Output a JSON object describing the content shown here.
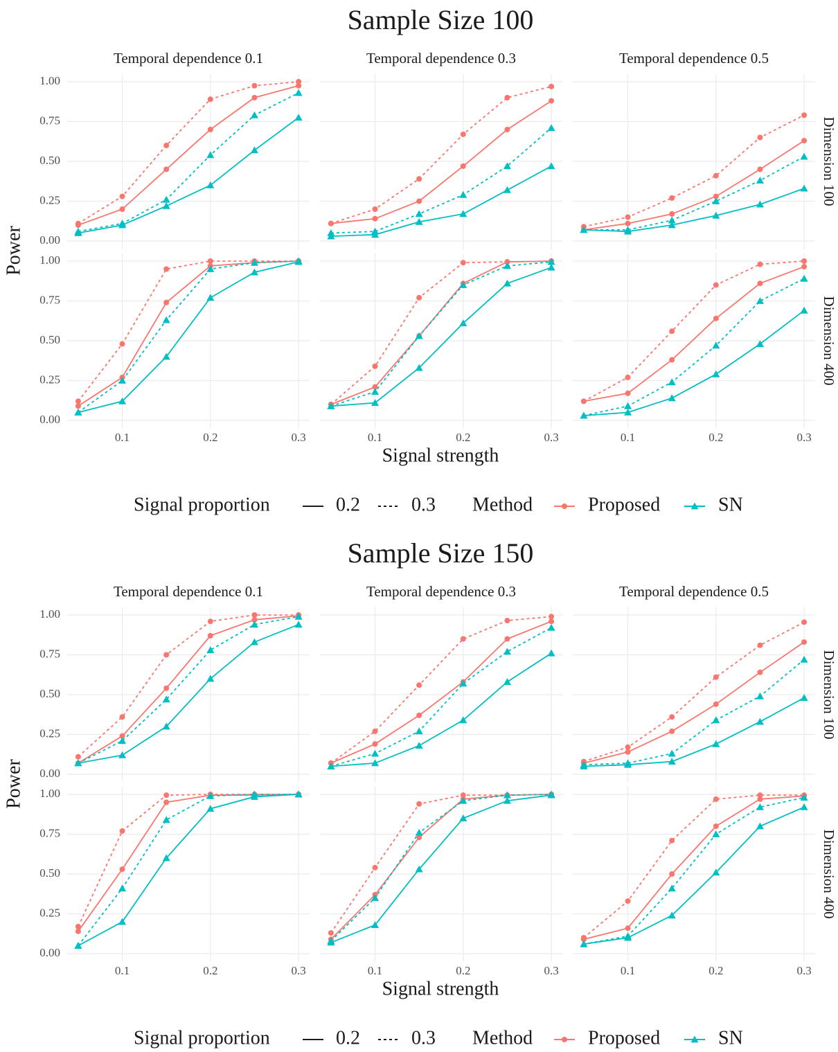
{
  "chart_data": [
    {
      "type": "line",
      "title": "Sample Size 100",
      "xlabel": "Signal strength",
      "ylabel": "Power",
      "col_labels": [
        "Temporal dependence 0.1",
        "Temporal dependence 0.3",
        "Temporal dependence 0.5"
      ],
      "row_labels": [
        "Dimension 100",
        "Dimension 400"
      ],
      "x": [
        0.05,
        0.1,
        0.15,
        0.2,
        0.25,
        0.3
      ],
      "xlim": [
        0.0375,
        0.3125
      ],
      "xticks": [
        0.1,
        0.2,
        0.3
      ],
      "ylim": [
        -0.05,
        1.05
      ],
      "yticks": [
        {
          "value": 0,
          "label": "0.00"
        },
        {
          "value": 0.25,
          "label": "0.25"
        },
        {
          "value": 0.5,
          "label": "0.50"
        },
        {
          "value": 0.75,
          "label": "0.75"
        },
        {
          "value": 1,
          "label": "1.00"
        }
      ],
      "grid": true,
      "legend": {
        "linetype_title": "Signal proportion",
        "linetypes": [
          {
            "name": "0.2",
            "dash": "solid"
          },
          {
            "name": "0.3",
            "dash": "dotted"
          }
        ],
        "color_title": "Method",
        "methods": [
          {
            "name": "Proposed",
            "color": "#F8766D",
            "marker": "circle"
          },
          {
            "name": "SN",
            "color": "#00BFC4",
            "marker": "triangle"
          }
        ]
      },
      "panels": [
        [
          [
            [
              [
                0.1,
                0.2,
                0.45,
                0.7,
                0.9,
                0.975
              ],
              [
                0.11,
                0.28,
                0.6,
                0.89,
                0.975,
                1.0
              ]
            ],
            [
              [
                0.05,
                0.1,
                0.22,
                0.35,
                0.57,
                0.775
              ],
              [
                0.06,
                0.11,
                0.26,
                0.54,
                0.79,
                0.93
              ]
            ]
          ],
          [
            [
              [
                0.11,
                0.14,
                0.25,
                0.47,
                0.7,
                0.88
              ],
              [
                0.11,
                0.2,
                0.39,
                0.67,
                0.9,
                0.97
              ]
            ],
            [
              [
                0.03,
                0.04,
                0.12,
                0.17,
                0.32,
                0.47
              ],
              [
                0.05,
                0.06,
                0.17,
                0.29,
                0.47,
                0.71
              ]
            ]
          ],
          [
            [
              [
                0.07,
                0.11,
                0.17,
                0.28,
                0.45,
                0.63
              ],
              [
                0.09,
                0.15,
                0.27,
                0.41,
                0.65,
                0.79
              ]
            ],
            [
              [
                0.07,
                0.06,
                0.1,
                0.16,
                0.23,
                0.33
              ],
              [
                0.07,
                0.07,
                0.13,
                0.25,
                0.38,
                0.53
              ]
            ]
          ]
        ],
        [
          [
            [
              [
                0.09,
                0.27,
                0.74,
                0.97,
                0.99,
                1.0
              ],
              [
                0.12,
                0.48,
                0.95,
                1.0,
                1.0,
                1.0
              ]
            ],
            [
              [
                0.05,
                0.12,
                0.4,
                0.77,
                0.93,
                0.995
              ],
              [
                0.05,
                0.25,
                0.63,
                0.95,
                0.99,
                1.0
              ]
            ]
          ],
          [
            [
              [
                0.1,
                0.21,
                0.53,
                0.86,
                0.995,
                1.0
              ],
              [
                0.1,
                0.34,
                0.77,
                0.99,
                0.995,
                1.0
              ]
            ],
            [
              [
                0.09,
                0.11,
                0.33,
                0.61,
                0.86,
                0.96
              ],
              [
                0.09,
                0.18,
                0.53,
                0.85,
                0.97,
                0.995
              ]
            ]
          ],
          [
            [
              [
                0.12,
                0.17,
                0.38,
                0.64,
                0.86,
                0.965
              ],
              [
                0.12,
                0.27,
                0.56,
                0.85,
                0.98,
                1.0
              ]
            ],
            [
              [
                0.03,
                0.05,
                0.14,
                0.29,
                0.48,
                0.69
              ],
              [
                0.03,
                0.09,
                0.24,
                0.47,
                0.75,
                0.89
              ]
            ]
          ]
        ]
      ]
    },
    {
      "type": "line",
      "title": "Sample Size 150",
      "xlabel": "Signal strength",
      "ylabel": "Power",
      "col_labels": [
        "Temporal dependence 0.1",
        "Temporal dependence 0.3",
        "Temporal dependence 0.5"
      ],
      "row_labels": [
        "Dimension 100",
        "Dimension 400"
      ],
      "x": [
        0.05,
        0.1,
        0.15,
        0.2,
        0.25,
        0.3
      ],
      "xlim": [
        0.0375,
        0.3125
      ],
      "xticks": [
        0.1,
        0.2,
        0.3
      ],
      "ylim": [
        -0.05,
        1.05
      ],
      "yticks": [
        {
          "value": 0,
          "label": "0.00"
        },
        {
          "value": 0.25,
          "label": "0.25"
        },
        {
          "value": 0.5,
          "label": "0.50"
        },
        {
          "value": 0.75,
          "label": "0.75"
        },
        {
          "value": 1,
          "label": "1.00"
        }
      ],
      "grid": true,
      "legend": {
        "linetype_title": "Signal proportion",
        "linetypes": [
          {
            "name": "0.2",
            "dash": "solid"
          },
          {
            "name": "0.3",
            "dash": "dotted"
          }
        ],
        "color_title": "Method",
        "methods": [
          {
            "name": "Proposed",
            "color": "#F8766D",
            "marker": "circle"
          },
          {
            "name": "SN",
            "color": "#00BFC4",
            "marker": "triangle"
          }
        ]
      },
      "panels": [
        [
          [
            [
              [
                0.07,
                0.24,
                0.54,
                0.87,
                0.97,
                0.995
              ],
              [
                0.11,
                0.36,
                0.75,
                0.96,
                1.0,
                1.0
              ]
            ],
            [
              [
                0.07,
                0.12,
                0.3,
                0.6,
                0.83,
                0.94
              ],
              [
                0.07,
                0.21,
                0.47,
                0.78,
                0.94,
                0.99
              ]
            ]
          ],
          [
            [
              [
                0.07,
                0.19,
                0.37,
                0.58,
                0.85,
                0.96
              ],
              [
                0.07,
                0.27,
                0.56,
                0.85,
                0.965,
                0.99
              ]
            ],
            [
              [
                0.05,
                0.07,
                0.18,
                0.34,
                0.58,
                0.76
              ],
              [
                0.05,
                0.13,
                0.27,
                0.57,
                0.77,
                0.92
              ]
            ]
          ],
          [
            [
              [
                0.07,
                0.14,
                0.27,
                0.44,
                0.64,
                0.83
              ],
              [
                0.08,
                0.17,
                0.36,
                0.61,
                0.81,
                0.955
              ]
            ],
            [
              [
                0.05,
                0.06,
                0.08,
                0.19,
                0.33,
                0.48
              ],
              [
                0.06,
                0.07,
                0.13,
                0.34,
                0.49,
                0.72
              ]
            ]
          ]
        ],
        [
          [
            [
              [
                0.14,
                0.53,
                0.95,
                0.995,
                0.995,
                1.0
              ],
              [
                0.17,
                0.77,
                0.995,
                1.0,
                1.0,
                1.0
              ]
            ],
            [
              [
                0.05,
                0.2,
                0.6,
                0.91,
                0.985,
                1.0
              ],
              [
                0.05,
                0.41,
                0.84,
                0.99,
                1.0,
                1.0
              ]
            ]
          ],
          [
            [
              [
                0.09,
                0.37,
                0.73,
                0.97,
                0.995,
                1.0
              ],
              [
                0.13,
                0.54,
                0.94,
                0.995,
                0.995,
                1.0
              ]
            ],
            [
              [
                0.07,
                0.18,
                0.53,
                0.85,
                0.96,
                0.995
              ],
              [
                0.08,
                0.35,
                0.76,
                0.96,
                0.995,
                1.0
              ]
            ]
          ],
          [
            [
              [
                0.09,
                0.16,
                0.5,
                0.8,
                0.97,
                0.99
              ],
              [
                0.1,
                0.33,
                0.71,
                0.97,
                0.995,
                0.995
              ]
            ],
            [
              [
                0.06,
                0.1,
                0.24,
                0.51,
                0.8,
                0.92
              ],
              [
                0.06,
                0.11,
                0.41,
                0.75,
                0.92,
                0.98
              ]
            ]
          ]
        ]
      ]
    }
  ]
}
